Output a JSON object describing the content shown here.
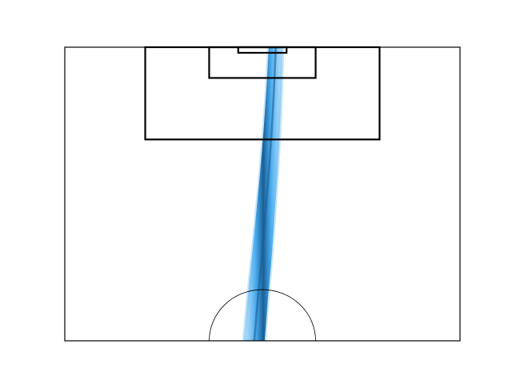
{
  "chart_data": {
    "type": "area",
    "title": "",
    "xlabel": "",
    "ylabel": "",
    "grid": false,
    "legend": "none",
    "pitch": {
      "view": "half-pitch",
      "xlim": [
        0,
        68
      ],
      "ylim": [
        52.5,
        105
      ],
      "penalty_area": {
        "width": 40.32,
        "depth": 16.5
      },
      "goal_area": {
        "width": 18.32,
        "depth": 5.5
      },
      "goal": {
        "width": 8.32,
        "depth": 1.0
      },
      "center_circle_radius": 9.15,
      "line_color": "#000000"
    },
    "series": [
      {
        "kind": "trajectory-density",
        "color": "#1f9be8",
        "x": [
          32.6,
          33.2,
          33.9,
          34.5,
          35.1,
          35.6,
          36.0,
          36.3
        ],
        "y": [
          52.5,
          60.0,
          67.5,
          75.0,
          82.5,
          90.0,
          97.5,
          105.0
        ],
        "band_width": [
          1.8,
          1.75,
          1.7,
          1.6,
          1.5,
          1.4,
          1.3,
          1.2
        ]
      }
    ]
  }
}
